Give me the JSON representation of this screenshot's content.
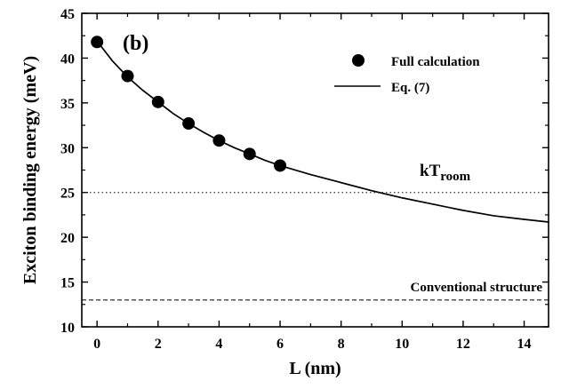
{
  "chart_data": {
    "type": "scatter",
    "panel_label": "(b)",
    "xlabel": "L (nm)",
    "ylabel": "Exciton binding energy (meV)",
    "xlim": [
      -0.5,
      14.8
    ],
    "ylim": [
      10,
      45
    ],
    "xticks": [
      0,
      2,
      4,
      6,
      8,
      10,
      12,
      14
    ],
    "yticks": [
      10,
      15,
      20,
      25,
      30,
      35,
      40,
      45
    ],
    "grid": false,
    "legend_position": "top-right",
    "series": [
      {
        "name": "Full calculation",
        "style": "filled-circle",
        "x": [
          0,
          1,
          2,
          3,
          4,
          5,
          6
        ],
        "y": [
          41.8,
          38.0,
          35.1,
          32.7,
          30.8,
          29.3,
          28.0
        ]
      },
      {
        "name": "Eq. (7)",
        "style": "solid-line",
        "x": [
          0,
          0.5,
          1,
          1.5,
          2,
          2.5,
          3,
          3.5,
          4,
          4.5,
          5,
          5.5,
          6,
          7,
          8,
          9,
          10,
          11,
          12,
          13,
          14,
          14.8
        ],
        "y": [
          41.9,
          39.7,
          37.9,
          36.4,
          35.1,
          33.8,
          32.7,
          31.7,
          30.8,
          30.0,
          29.3,
          28.6,
          28.0,
          27.0,
          26.1,
          25.2,
          24.4,
          23.7,
          23.0,
          22.4,
          22.0,
          21.7
        ]
      }
    ],
    "reference_lines": [
      {
        "y": 25,
        "style": "dotted",
        "label_main": "kT",
        "label_sub": "room"
      },
      {
        "y": 13,
        "style": "dashed",
        "label": "Conventional structure"
      }
    ]
  }
}
